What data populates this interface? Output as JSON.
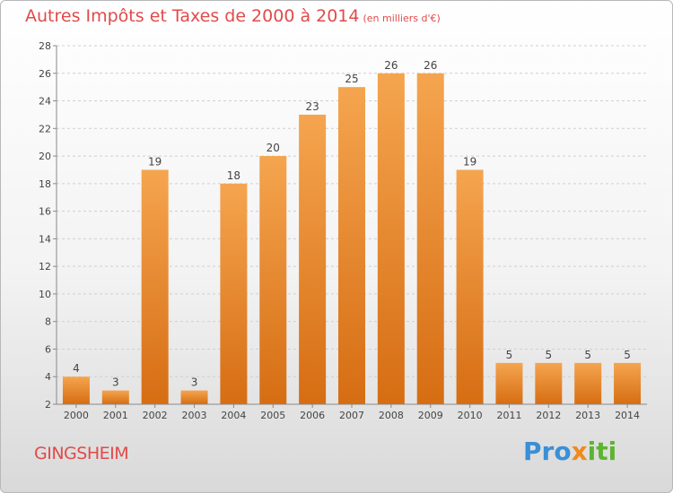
{
  "title": "Autres Impôts et Taxes de 2000 à 2014",
  "subtitle": "(en milliers d'€)",
  "commune": "GINGSHEIM",
  "logo": {
    "p1": "Pro",
    "p2": "x",
    "p3": "iti"
  },
  "colors": {
    "bar_top": "#f5a54f",
    "bar_bottom": "#d66d13",
    "title": "#e24a4a",
    "axis": "#666666"
  },
  "chart_data": {
    "type": "bar",
    "categories": [
      "2000",
      "2001",
      "2002",
      "2003",
      "2004",
      "2005",
      "2006",
      "2007",
      "2008",
      "2009",
      "2010",
      "2011",
      "2012",
      "2013",
      "2014"
    ],
    "values": [
      4,
      3,
      19,
      3,
      18,
      20,
      23,
      25,
      26,
      26,
      19,
      5,
      5,
      5,
      5
    ],
    "ylim": [
      2,
      28
    ],
    "yticks": [
      2,
      4,
      6,
      8,
      10,
      12,
      14,
      16,
      18,
      20,
      22,
      24,
      26,
      28
    ],
    "grid": "horizontal-dashed",
    "data_labels": true
  }
}
